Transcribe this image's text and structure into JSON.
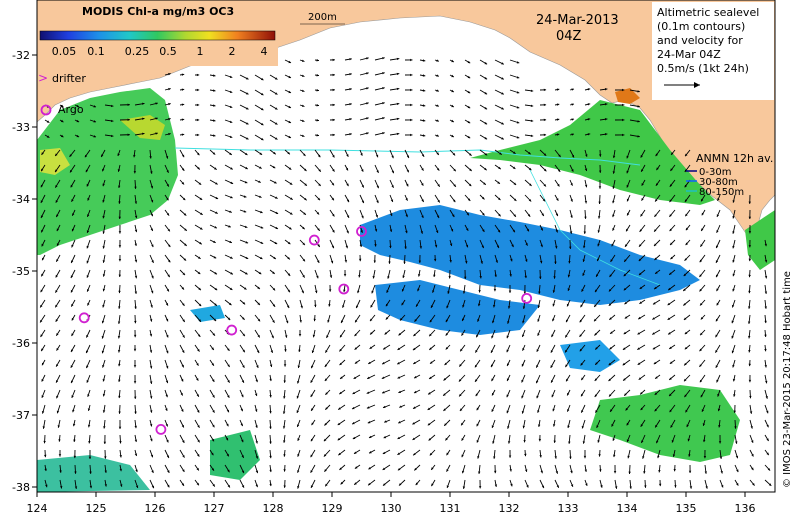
{
  "colorbar": {
    "title": "MODIS Chl-a mg/m3 OC3",
    "ticks": [
      "0.05",
      "0.1",
      "0.25",
      "0.5",
      "1",
      "2",
      "4"
    ],
    "colors": [
      "#1a1aa0",
      "#1f4fe0",
      "#1e9be8",
      "#20c8c0",
      "#2ec860",
      "#8ed03a",
      "#e8e020",
      "#f0a020",
      "#e05a10",
      "#a01808"
    ]
  },
  "legend": {
    "drifter": "drifter",
    "argo": "Argo",
    "marker_color": "#d020d0"
  },
  "depth_label": "200m",
  "date": "24-Mar-2013",
  "time": "04Z",
  "altimetry_note": [
    "Altimetric sealevel",
    "(0.1m contours)",
    "and velocity for",
    "24-Mar 04Z"
  ],
  "scale_note": "0.5m/s (1kt 24h)",
  "anmn": {
    "title": "ANMN 12h av.",
    "entries": [
      {
        "label": "0-30m",
        "color": "#000080"
      },
      {
        "label": "30-80m",
        "color": "#1060ff"
      },
      {
        "label": "80-150m",
        "color": "#20c0c0"
      }
    ]
  },
  "credit": "© IMOS 23-Mar-2015 20:17:48 Hobart time",
  "axes": {
    "x_ticks": [
      "124",
      "125",
      "126",
      "127",
      "128",
      "129",
      "130",
      "131",
      "132",
      "133",
      "134",
      "135",
      "136"
    ],
    "y_ticks": [
      "-32",
      "-33",
      "-34",
      "-35",
      "-36",
      "-37",
      "-38"
    ]
  },
  "argo_floats": [
    {
      "lon": 124.8,
      "lat": -35.65
    },
    {
      "lon": 126.1,
      "lat": -37.2
    },
    {
      "lon": 127.3,
      "lat": -35.82
    },
    {
      "lon": 128.7,
      "lat": -34.57
    },
    {
      "lon": 129.2,
      "lat": -35.25
    },
    {
      "lon": 129.5,
      "lat": -34.45
    },
    {
      "lon": 132.3,
      "lat": -35.38
    }
  ],
  "colors": {
    "land": "#f8c89c",
    "ocean": "#ffffff",
    "arrow": "#000000",
    "contour_cyan": "#40e0e0"
  }
}
